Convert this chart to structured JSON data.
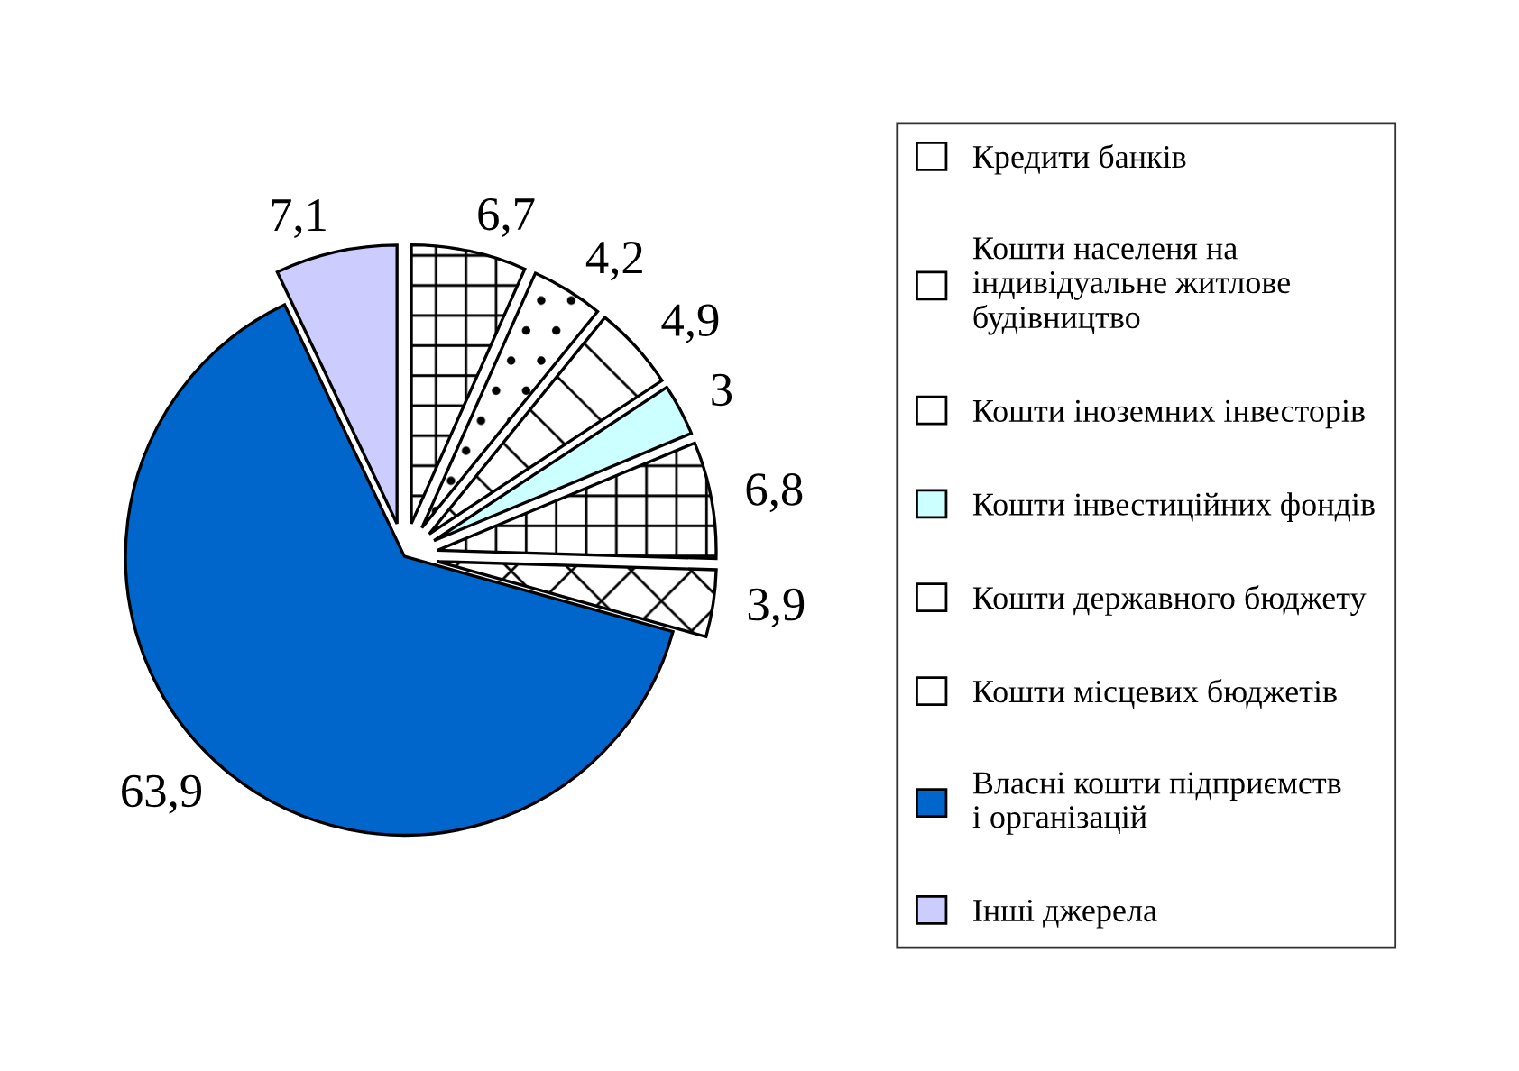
{
  "chart_data": {
    "type": "pie",
    "categories": [
      "Кредити банків",
      "Кошти населеня на\nіндивідуальне житлове\nбудівництво",
      "Кошти іноземних інвесторів",
      "Кошти інвестиційних фондів",
      "Кошти державного бюджету",
      "Кошти місцевих бюджетів",
      "Власні кошти підприємств\nі організацій",
      "Інші джерела"
    ],
    "values": [
      6.7,
      4.2,
      4.9,
      3,
      6.8,
      3.9,
      63.9,
      7.1
    ],
    "value_labels": [
      "6,7",
      "4,2",
      "4,9",
      "3",
      "6,8",
      "3,9",
      "63,9",
      "7,1"
    ],
    "colors": [
      "#ffffff",
      "#ffffff",
      "#ffffff",
      "#ccffff",
      "#ffffff",
      "#ffffff",
      "#0066cc",
      "#ccccff"
    ],
    "legend": "right"
  }
}
